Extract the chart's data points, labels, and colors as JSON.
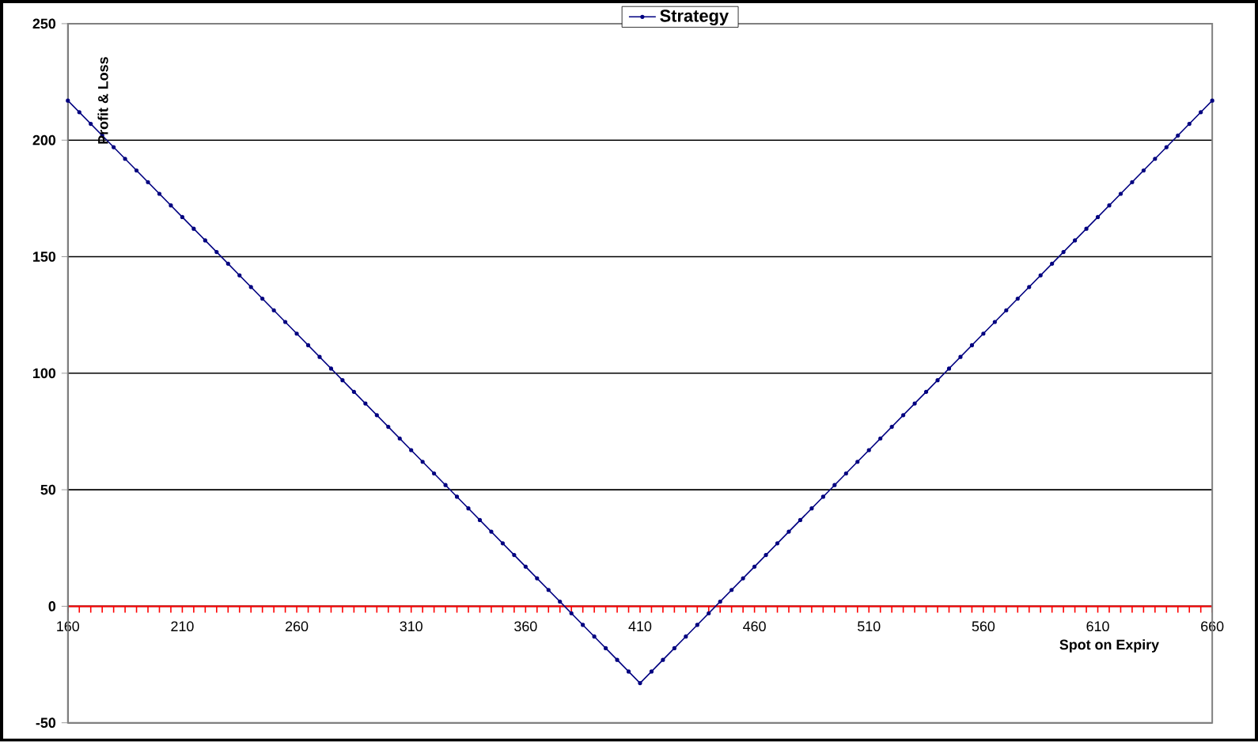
{
  "chart_data": {
    "type": "line",
    "xlabel": "Spot on Expiry",
    "ylabel": "Profit & Loss",
    "x": [
      160,
      165,
      170,
      175,
      180,
      185,
      190,
      195,
      200,
      205,
      210,
      215,
      220,
      225,
      230,
      235,
      240,
      245,
      250,
      255,
      260,
      265,
      270,
      275,
      280,
      285,
      290,
      295,
      300,
      305,
      310,
      315,
      320,
      325,
      330,
      335,
      340,
      345,
      350,
      355,
      360,
      365,
      370,
      375,
      380,
      385,
      390,
      395,
      400,
      405,
      410,
      415,
      420,
      425,
      430,
      435,
      440,
      445,
      450,
      455,
      460,
      465,
      470,
      475,
      480,
      485,
      490,
      495,
      500,
      505,
      510,
      515,
      520,
      525,
      530,
      535,
      540,
      545,
      550,
      555,
      560,
      565,
      570,
      575,
      580,
      585,
      590,
      595,
      600,
      605,
      610,
      615,
      620,
      625,
      630,
      635,
      640,
      645,
      650,
      655,
      660
    ],
    "series": [
      {
        "name": "Strategy",
        "color": "#000080",
        "values": [
          217,
          212,
          207,
          202,
          197,
          192,
          187,
          182,
          177,
          172,
          167,
          162,
          157,
          152,
          147,
          142,
          137,
          132,
          127,
          122,
          117,
          112,
          107,
          102,
          97,
          92,
          87,
          82,
          77,
          72,
          67,
          62,
          57,
          52,
          47,
          42,
          37,
          32,
          27,
          22,
          17,
          12,
          7,
          2,
          -3,
          -8,
          -13,
          -18,
          -23,
          -28,
          -33,
          -28,
          -23,
          -18,
          -13,
          -8,
          -3,
          2,
          7,
          12,
          17,
          22,
          27,
          32,
          37,
          42,
          47,
          52,
          57,
          62,
          67,
          72,
          77,
          82,
          87,
          92,
          97,
          102,
          107,
          112,
          117,
          122,
          127,
          132,
          137,
          142,
          147,
          152,
          157,
          162,
          167,
          172,
          177,
          182,
          187,
          192,
          197,
          202,
          207,
          212,
          217
        ]
      }
    ],
    "xlim": [
      160,
      660
    ],
    "ylim": [
      -50,
      250
    ],
    "xticks": [
      160,
      210,
      260,
      310,
      360,
      410,
      460,
      510,
      560,
      610,
      660
    ],
    "yticks": [
      -50,
      0,
      50,
      100,
      150,
      200,
      250
    ],
    "grid": "y",
    "legend": "top",
    "marker": "circle",
    "line_style": "solid"
  }
}
